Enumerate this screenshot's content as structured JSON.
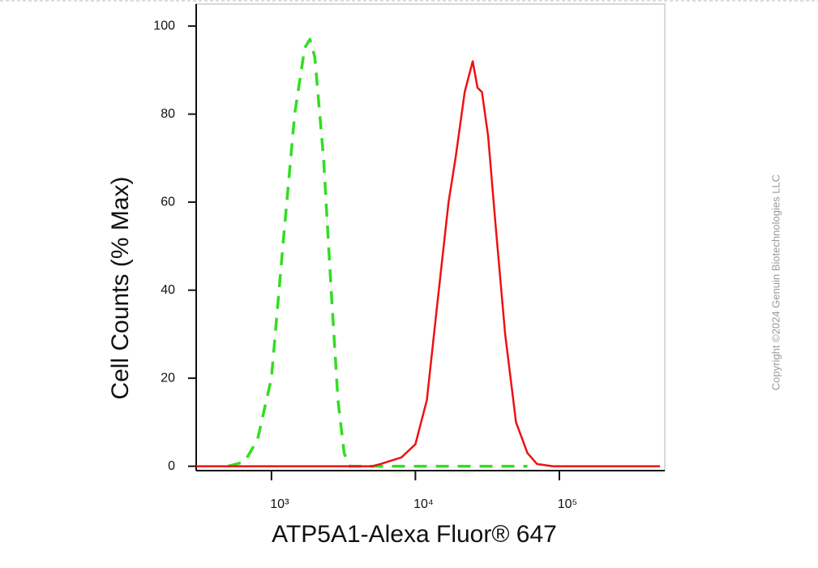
{
  "chart_data": {
    "type": "line",
    "x_label": "ATP5A1-Alexa Fluor® 647",
    "y_label": "Cell Counts (% Max)",
    "copyright": "Copyright ©2024 Genuin Biotechnologies LLC",
    "x_log": true,
    "xlim": [
      300,
      540000
    ],
    "xticks": [
      {
        "value": 1000,
        "label": "10³"
      },
      {
        "value": 10000,
        "label": "10⁴"
      },
      {
        "value": 100000,
        "label": "10⁵"
      }
    ],
    "ylim": [
      -1,
      105
    ],
    "yticks": [
      0,
      20,
      40,
      60,
      80,
      100
    ],
    "series": [
      {
        "color": "#33dd22",
        "dashed": true,
        "x": [
          500,
          650,
          800,
          1000,
          1200,
          1450,
          1700,
          1850,
          2000,
          2300,
          2600,
          2900,
          3200,
          3500,
          10000,
          60000
        ],
        "values": [
          0,
          1,
          6,
          20,
          50,
          80,
          95,
          97,
          93,
          70,
          40,
          15,
          3,
          0,
          0,
          0
        ]
      },
      {
        "color": "#ee1111",
        "dashed": false,
        "x": [
          300,
          5000,
          5700,
          8000,
          10000,
          12000,
          14000,
          17000,
          19000,
          22000,
          25000,
          27000,
          29000,
          32000,
          36000,
          42000,
          50000,
          60000,
          70000,
          90000,
          500000
        ],
        "values": [
          0,
          0,
          0.5,
          2,
          5,
          15,
          35,
          60,
          70,
          85,
          92,
          86,
          85,
          75,
          55,
          30,
          10,
          3,
          0.5,
          0,
          0
        ]
      }
    ]
  }
}
